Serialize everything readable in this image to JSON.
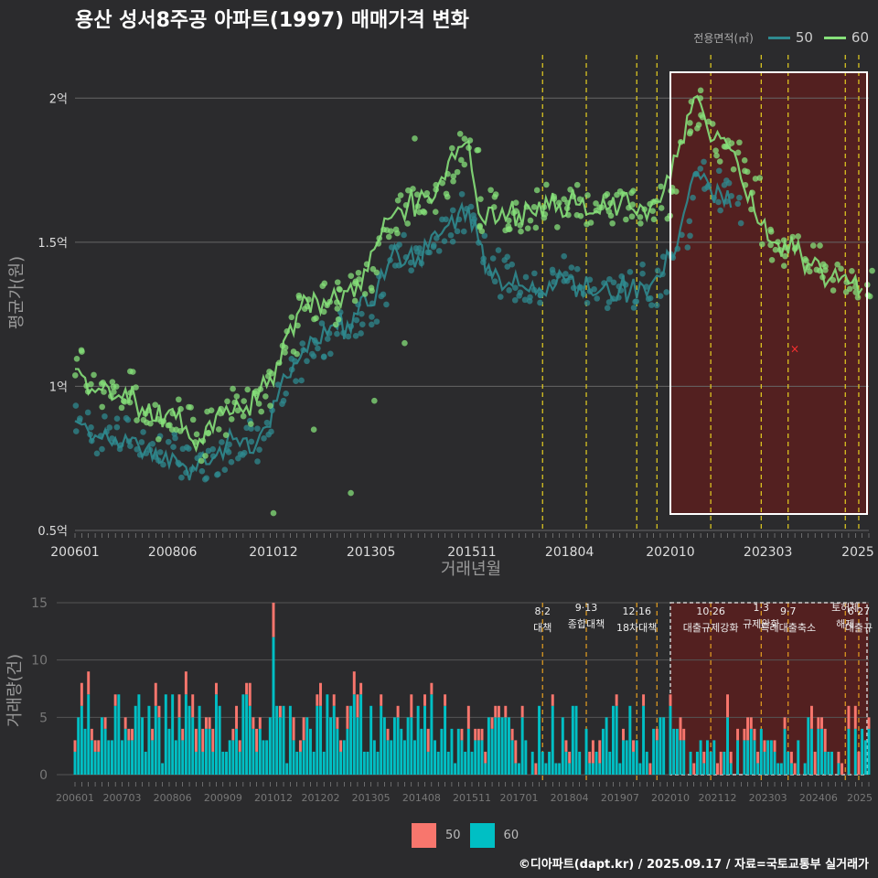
{
  "title": "용산 성서8주공 아파트(1997) 매매가격 변화",
  "legend": {
    "label": "전용면적(㎡)",
    "items": [
      {
        "name": "50",
        "color": "#2f8a8f"
      },
      {
        "name": "60",
        "color": "#86e07a"
      }
    ]
  },
  "bar_legend": [
    {
      "name": "50",
      "color": "#f8766d"
    },
    {
      "name": "60",
      "color": "#00bfc4"
    }
  ],
  "footer": "©디아파트(dapt.kr) / 2025.09.17 / 자료=국토교통부 실거래가",
  "chart_data": [
    {
      "type": "line",
      "xlabel": "거래년월",
      "ylabel": "평균가(원)",
      "x_start": "2006-01",
      "x_end": "2025-09",
      "ylim": [
        0.5,
        2.15
      ],
      "y_ticks": [
        0.5,
        1.0,
        1.5,
        2.0
      ],
      "y_tick_labels": [
        "0.5억",
        "1억",
        "1.5억",
        "2억"
      ],
      "x_tick_labels": [
        "200601",
        "200806",
        "201012",
        "201305",
        "201511",
        "201804",
        "202010",
        "202303",
        "2025"
      ],
      "series": [
        {
          "name": "60",
          "points": [
            [
              "2006-01",
              1.06
            ],
            [
              "2006-04",
              1.03
            ],
            [
              "2006-07",
              0.98
            ],
            [
              "2006-10",
              1.01
            ],
            [
              "2007-01",
              0.96
            ],
            [
              "2007-04",
              0.99
            ],
            [
              "2007-07",
              0.95
            ],
            [
              "2007-10",
              0.9
            ],
            [
              "2008-01",
              0.88
            ],
            [
              "2008-04",
              0.9
            ],
            [
              "2008-07",
              0.89
            ],
            [
              "2008-10",
              0.86
            ],
            [
              "2009-01",
              0.78
            ],
            [
              "2009-04",
              0.86
            ],
            [
              "2009-07",
              0.9
            ],
            [
              "2009-10",
              0.93
            ],
            [
              "2010-01",
              0.95
            ],
            [
              "2010-04",
              0.93
            ],
            [
              "2010-07",
              0.95
            ],
            [
              "2010-10",
              1.0
            ],
            [
              "2011-01",
              1.08
            ],
            [
              "2011-04",
              1.18
            ],
            [
              "2011-07",
              1.25
            ],
            [
              "2011-10",
              1.3
            ],
            [
              "2012-01",
              1.3
            ],
            [
              "2012-04",
              1.28
            ],
            [
              "2012-07",
              1.3
            ],
            [
              "2012-10",
              1.33
            ],
            [
              "2013-01",
              1.36
            ],
            [
              "2013-04",
              1.4
            ],
            [
              "2013-07",
              1.5
            ],
            [
              "2013-10",
              1.58
            ],
            [
              "2014-01",
              1.62
            ],
            [
              "2014-04",
              1.63
            ],
            [
              "2014-07",
              1.64
            ],
            [
              "2014-10",
              1.66
            ],
            [
              "2015-01",
              1.7
            ],
            [
              "2015-04",
              1.78
            ],
            [
              "2015-07",
              1.83
            ],
            [
              "2015-10",
              1.85
            ],
            [
              "2016-01",
              1.6
            ],
            [
              "2016-04",
              1.62
            ],
            [
              "2016-07",
              1.58
            ],
            [
              "2016-10",
              1.6
            ],
            [
              "2017-01",
              1.6
            ],
            [
              "2017-04",
              1.62
            ],
            [
              "2017-07",
              1.64
            ],
            [
              "2017-10",
              1.62
            ],
            [
              "2018-01",
              1.63
            ],
            [
              "2018-04",
              1.64
            ],
            [
              "2018-07",
              1.63
            ],
            [
              "2018-10",
              1.6
            ],
            [
              "2019-01",
              1.6
            ],
            [
              "2019-04",
              1.62
            ],
            [
              "2019-07",
              1.63
            ],
            [
              "2019-10",
              1.62
            ],
            [
              "2020-01",
              1.63
            ],
            [
              "2020-04",
              1.62
            ],
            [
              "2020-07",
              1.64
            ],
            [
              "2020-10",
              1.72
            ],
            [
              "2021-01",
              1.85
            ],
            [
              "2021-04",
              1.95
            ],
            [
              "2021-07",
              1.98
            ],
            [
              "2021-10",
              1.85
            ],
            [
              "2022-01",
              1.86
            ],
            [
              "2022-04",
              1.82
            ],
            [
              "2022-07",
              1.72
            ],
            [
              "2022-10",
              1.68
            ],
            [
              "2023-01",
              1.56
            ],
            [
              "2023-04",
              1.5
            ],
            [
              "2023-07",
              1.45
            ],
            [
              "2023-10",
              1.52
            ],
            [
              "2024-01",
              1.45
            ],
            [
              "2024-04",
              1.42
            ],
            [
              "2024-07",
              1.4
            ],
            [
              "2024-10",
              1.38
            ],
            [
              "2025-01",
              1.38
            ],
            [
              "2025-04",
              1.36
            ],
            [
              "2025-07",
              1.34
            ]
          ]
        },
        {
          "name": "50",
          "points": [
            [
              "2006-01",
              0.88
            ],
            [
              "2006-04",
              0.87
            ],
            [
              "2006-07",
              0.83
            ],
            [
              "2006-10",
              0.85
            ],
            [
              "2007-01",
              0.82
            ],
            [
              "2007-04",
              0.83
            ],
            [
              "2007-07",
              0.82
            ],
            [
              "2007-10",
              0.78
            ],
            [
              "2008-01",
              0.78
            ],
            [
              "2008-04",
              0.77
            ],
            [
              "2008-07",
              0.75
            ],
            [
              "2008-10",
              0.72
            ],
            [
              "2009-01",
              0.71
            ],
            [
              "2009-04",
              0.73
            ],
            [
              "2009-07",
              0.76
            ],
            [
              "2009-10",
              0.8
            ],
            [
              "2010-01",
              0.82
            ],
            [
              "2010-04",
              0.82
            ],
            [
              "2010-07",
              0.8
            ],
            [
              "2010-10",
              0.86
            ],
            [
              "2011-01",
              0.95
            ],
            [
              "2011-04",
              1.03
            ],
            [
              "2011-07",
              1.08
            ],
            [
              "2011-10",
              1.12
            ],
            [
              "2012-01",
              1.15
            ],
            [
              "2012-04",
              1.18
            ],
            [
              "2012-07",
              1.2
            ],
            [
              "2012-10",
              1.22
            ],
            [
              "2013-01",
              1.25
            ],
            [
              "2013-04",
              1.28
            ],
            [
              "2013-07",
              1.35
            ],
            [
              "2013-10",
              1.42
            ],
            [
              "2014-01",
              1.46
            ],
            [
              "2014-04",
              1.45
            ],
            [
              "2014-07",
              1.45
            ],
            [
              "2014-10",
              1.48
            ],
            [
              "2015-01",
              1.52
            ],
            [
              "2015-04",
              1.56
            ],
            [
              "2015-07",
              1.6
            ],
            [
              "2015-10",
              1.62
            ],
            [
              "2016-01",
              1.5
            ],
            [
              "2016-04",
              1.42
            ],
            [
              "2016-07",
              1.38
            ],
            [
              "2016-10",
              1.36
            ],
            [
              "2017-01",
              1.35
            ],
            [
              "2017-04",
              1.33
            ],
            [
              "2017-07",
              1.34
            ],
            [
              "2017-10",
              1.36
            ],
            [
              "2018-01",
              1.4
            ],
            [
              "2018-04",
              1.38
            ],
            [
              "2018-07",
              1.35
            ],
            [
              "2018-10",
              1.33
            ],
            [
              "2019-01",
              1.33
            ],
            [
              "2019-04",
              1.32
            ],
            [
              "2019-07",
              1.34
            ],
            [
              "2019-10",
              1.33
            ],
            [
              "2020-01",
              1.36
            ],
            [
              "2020-04",
              1.35
            ],
            [
              "2020-07",
              1.38
            ],
            [
              "2020-10",
              1.45
            ],
            [
              "2021-01",
              1.55
            ],
            [
              "2021-04",
              1.7
            ],
            [
              "2021-07",
              1.72
            ],
            [
              "2021-10",
              1.68
            ],
            [
              "2022-01",
              1.67
            ],
            [
              "2022-04",
              1.62
            ]
          ]
        }
      ],
      "scatter_outliers": [
        [
          "2010-12",
          0.56
        ],
        [
          "2012-11",
          0.63
        ],
        [
          "2011-12",
          0.85
        ],
        [
          "2013-06",
          0.95
        ],
        [
          "2014-03",
          1.15
        ],
        [
          "2014-06",
          1.86
        ]
      ],
      "marker_x": {
        "x": "2023-11",
        "y": 1.13,
        "label": "×"
      }
    },
    {
      "type": "bar",
      "stacked": true,
      "xlabel": "",
      "ylabel": "거래량(건)",
      "ylim": [
        0,
        15
      ],
      "y_ticks": [
        0,
        5,
        10,
        15
      ],
      "x_tick_labels": [
        "200601",
        "200703",
        "200806",
        "200909",
        "201012",
        "201202",
        "201305",
        "201408",
        "201511",
        "201701",
        "201804",
        "201907",
        "202010",
        "202112",
        "202303",
        "202406",
        "2025"
      ],
      "peak": {
        "x": "2010-12",
        "value": 15
      }
    }
  ],
  "policy_events": [
    {
      "date": "2017-08",
      "label": "8·2 대책"
    },
    {
      "date": "2018-09",
      "label": "9·13 종합대책"
    },
    {
      "date": "2019-12",
      "label": "12·16 18차대책"
    },
    {
      "date": "2020-06",
      "label": ""
    },
    {
      "date": "2021-10",
      "label": "10·26 대출규제강화"
    },
    {
      "date": "2023-01",
      "label": "1·3 규제완화"
    },
    {
      "date": "2023-09",
      "label": "9·7 특례대출축소"
    },
    {
      "date": "2025-02",
      "label": "토허제 해제"
    },
    {
      "date": "2025-06",
      "label": "6·27 대출규"
    }
  ],
  "highlight_range": [
    "2020-10",
    "2025-09"
  ]
}
